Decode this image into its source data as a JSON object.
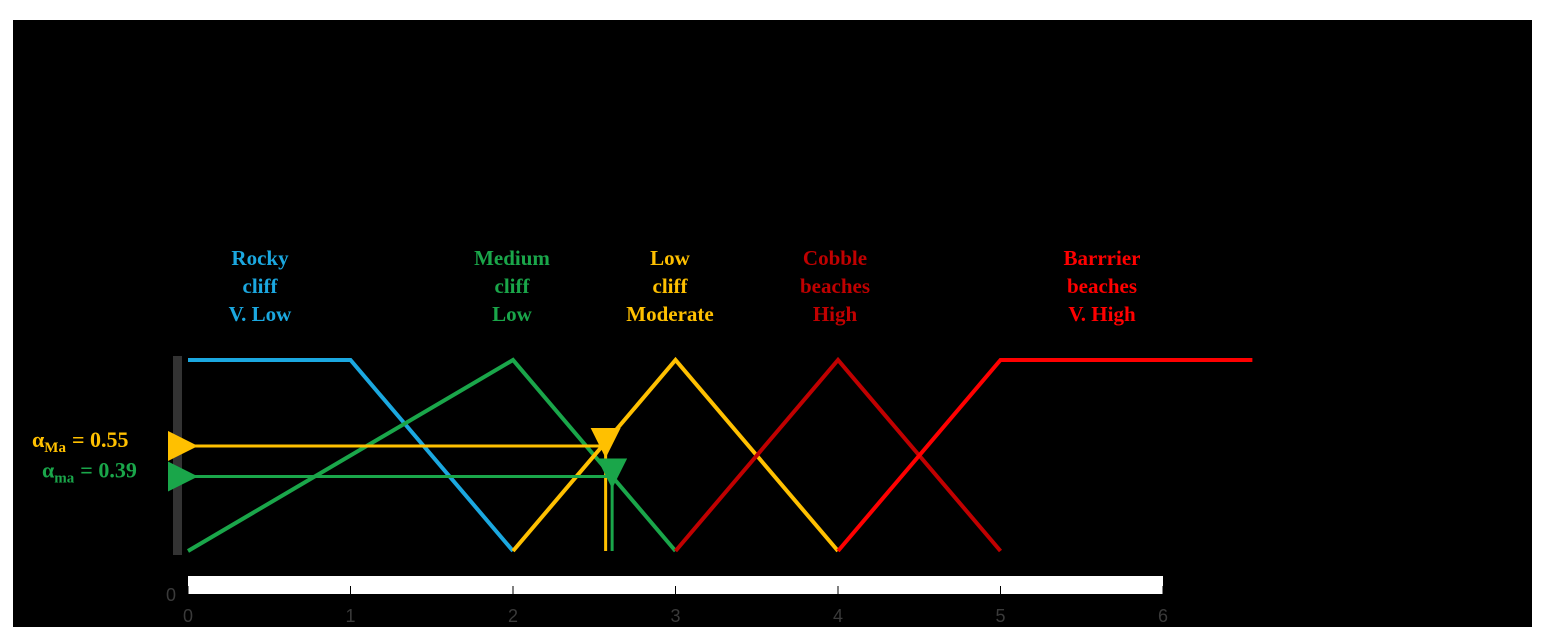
{
  "chart_data": {
    "type": "line",
    "xlim": [
      0,
      6
    ],
    "xticks": [
      0,
      1,
      2,
      3,
      4,
      5,
      6
    ],
    "ylim": [
      0,
      1
    ],
    "yticks": [
      0
    ],
    "series": [
      {
        "label": [
          "Rocky",
          "cliff",
          "V. Low"
        ],
        "color": "#1ba8e0",
        "x": [
          0,
          1,
          2
        ],
        "values": [
          1,
          1,
          0
        ]
      },
      {
        "label": [
          "Medium",
          "cliff",
          "Low"
        ],
        "color": "#1aa64a",
        "x": [
          0,
          2,
          3
        ],
        "values": [
          0,
          1,
          0
        ]
      },
      {
        "label": [
          "Low",
          "cliff",
          "Moderate"
        ],
        "color": "#ffc000",
        "x": [
          2,
          3,
          4
        ],
        "values": [
          0,
          1,
          0
        ]
      },
      {
        "label": [
          "Cobble",
          "beaches",
          "High"
        ],
        "color": "#c00000",
        "x": [
          3,
          4,
          5
        ],
        "values": [
          0,
          1,
          0
        ]
      },
      {
        "label": [
          "Barrrier",
          "beaches",
          "V. High"
        ],
        "color": "#ff0000",
        "x": [
          4,
          5,
          6.55
        ],
        "values": [
          0,
          1,
          1
        ]
      }
    ],
    "annotations": [
      {
        "symbol": "α",
        "subscript": "Ma",
        "value_label": "= 0.55",
        "value": 0.55,
        "x": 2.57,
        "color": "#ffc000"
      },
      {
        "symbol": "α",
        "subscript": "ma",
        "value_label": "= 0.39",
        "value": 0.39,
        "x": 2.61,
        "color": "#1aa64a"
      }
    ]
  }
}
